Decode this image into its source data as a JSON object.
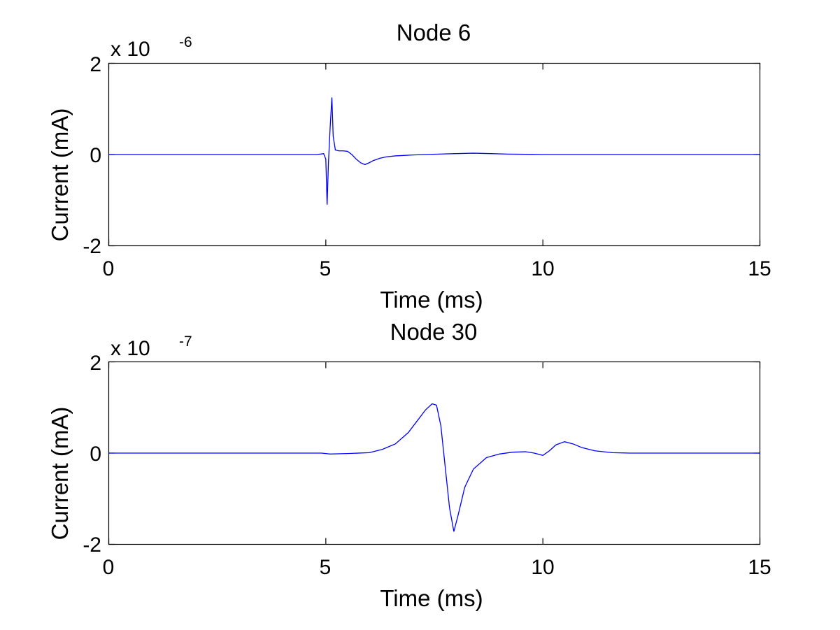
{
  "chart_data": [
    {
      "type": "line",
      "title": "Node 6",
      "xlabel": "Time (ms)",
      "ylabel": "Current (mA)",
      "xlim": [
        0,
        15
      ],
      "ylim": [
        -2,
        2
      ],
      "x_ticks": [
        "0",
        "5",
        "10",
        "15"
      ],
      "y_ticks": [
        "-2",
        "0",
        "2"
      ],
      "y_exponent_base": "x 10",
      "y_exponent_power": "-6",
      "grid": false,
      "series_color": "#0000ff",
      "series": [
        {
          "x": [
            0,
            4.8,
            4.95,
            5.0,
            5.03,
            5.06,
            5.1,
            5.14,
            5.17,
            5.22,
            5.3,
            5.4,
            5.5,
            5.6,
            5.7,
            5.8,
            5.9,
            6.0,
            6.1,
            6.25,
            6.4,
            6.6,
            6.8,
            7.0,
            7.3,
            7.6,
            8.0,
            8.4,
            8.8,
            9.2,
            10,
            11,
            12,
            13,
            14,
            15
          ],
          "y": [
            0,
            0,
            0.02,
            -0.1,
            -1.1,
            -0.2,
            0.6,
            1.25,
            0.4,
            0.1,
            0.08,
            0.08,
            0.07,
            0.0,
            -0.1,
            -0.18,
            -0.22,
            -0.18,
            -0.13,
            -0.08,
            -0.05,
            -0.03,
            -0.02,
            -0.01,
            0.0,
            0.01,
            0.02,
            0.03,
            0.02,
            0.01,
            0.0,
            0,
            0,
            0,
            0,
            0
          ]
        }
      ]
    },
    {
      "type": "line",
      "title": "Node 30",
      "xlabel": "Time (ms)",
      "ylabel": "Current (mA)",
      "xlim": [
        0,
        15
      ],
      "ylim": [
        -2,
        2
      ],
      "x_ticks": [
        "0",
        "5",
        "10",
        "15"
      ],
      "y_ticks": [
        "-2",
        "0",
        "2"
      ],
      "y_exponent_base": "x 10",
      "y_exponent_power": "-7",
      "grid": false,
      "series_color": "#0000ff",
      "series": [
        {
          "x": [
            0,
            4.9,
            5.1,
            5.5,
            6.0,
            6.3,
            6.6,
            6.9,
            7.1,
            7.3,
            7.45,
            7.55,
            7.65,
            7.75,
            7.85,
            7.95,
            8.05,
            8.2,
            8.4,
            8.7,
            9.0,
            9.3,
            9.6,
            9.8,
            10.0,
            10.15,
            10.3,
            10.5,
            10.7,
            10.9,
            11.2,
            11.6,
            12.0,
            13,
            14,
            15
          ],
          "y": [
            0,
            0,
            -0.02,
            -0.01,
            0.01,
            0.08,
            0.2,
            0.45,
            0.7,
            0.95,
            1.08,
            1.05,
            0.6,
            -0.3,
            -1.2,
            -1.72,
            -1.35,
            -0.75,
            -0.35,
            -0.1,
            -0.02,
            0.02,
            0.03,
            0.0,
            -0.05,
            0.05,
            0.18,
            0.25,
            0.2,
            0.12,
            0.05,
            0.01,
            0.0,
            0,
            0,
            0
          ]
        }
      ]
    }
  ]
}
